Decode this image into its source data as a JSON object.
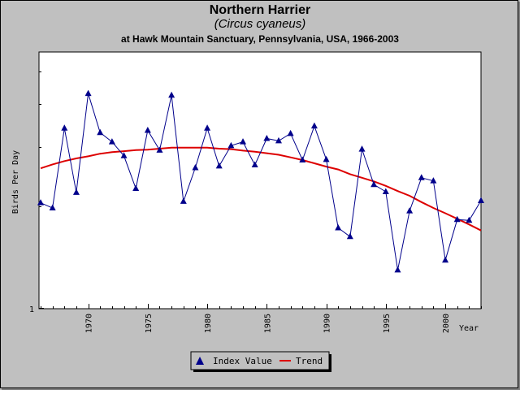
{
  "chart_data": {
    "type": "line",
    "title": "Northern Harrier",
    "subtitle": "(Circus cyaneus)",
    "subtitle2": "at Hawk Mountain Sanctuary, Pennsylvania, USA, 1966-2003",
    "xlabel": "Year",
    "ylabel": "Birds Per Day",
    "xlim": [
      1966,
      2003
    ],
    "x_ticks": [
      "1970",
      "1975",
      "1980",
      "1985",
      "1990",
      "1995",
      "2000"
    ],
    "y_tick_label": "1",
    "y_scale": "log",
    "grid": false,
    "legend_position": "bottom",
    "x": [
      1966,
      1967,
      1968,
      1969,
      1970,
      1971,
      1972,
      1973,
      1974,
      1975,
      1976,
      1977,
      1978,
      1979,
      1980,
      1981,
      1982,
      1983,
      1984,
      1985,
      1986,
      1987,
      1988,
      1989,
      1990,
      1991,
      1992,
      1993,
      1994,
      1995,
      1996,
      1997,
      1998,
      1999,
      2000,
      2001,
      2002,
      2003
    ],
    "series": [
      {
        "name": "Index Value",
        "color": "#00008b",
        "marker": "triangle",
        "values": [
          2.05,
          1.98,
          3.4,
          2.2,
          4.3,
          3.3,
          3.1,
          2.82,
          2.26,
          3.35,
          2.93,
          4.25,
          2.07,
          2.6,
          3.4,
          2.63,
          3.02,
          3.1,
          2.65,
          3.17,
          3.12,
          3.28,
          2.74,
          3.45,
          2.75,
          1.73,
          1.63,
          2.95,
          2.32,
          2.21,
          1.3,
          1.94,
          2.43,
          2.38,
          1.39,
          1.83,
          1.82,
          2.08
        ]
      },
      {
        "name": "Trend",
        "color": "#dd0000",
        "values": [
          2.59,
          2.66,
          2.72,
          2.77,
          2.81,
          2.86,
          2.89,
          2.91,
          2.93,
          2.94,
          2.96,
          2.98,
          2.98,
          2.98,
          2.98,
          2.96,
          2.95,
          2.92,
          2.9,
          2.87,
          2.84,
          2.79,
          2.74,
          2.68,
          2.62,
          2.57,
          2.49,
          2.43,
          2.37,
          2.3,
          2.22,
          2.15,
          2.06,
          1.98,
          1.91,
          1.84,
          1.77,
          1.7
        ]
      }
    ]
  }
}
